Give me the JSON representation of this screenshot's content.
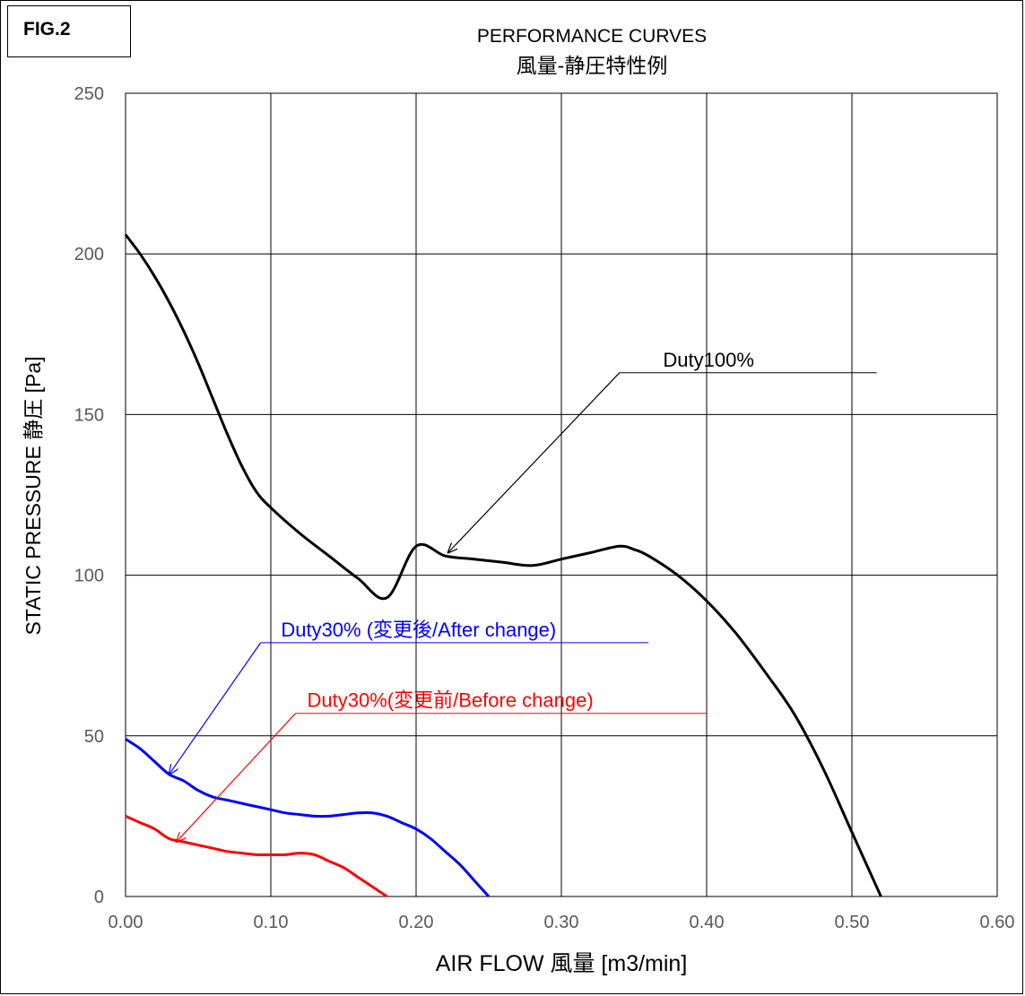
{
  "figure_label": "FIG.2",
  "chart_data": {
    "type": "line",
    "title": "PERFORMANCE CURVES",
    "subtitle": "風量-静圧特性例",
    "xlabel": "AIR FLOW 風量 [m3/min]",
    "ylabel": "STATIC PRESSURE 静圧 [Pa]",
    "xlim": [
      0,
      0.6
    ],
    "ylim": [
      0,
      250
    ],
    "xticks": [
      "0.00",
      "0.10",
      "0.20",
      "0.30",
      "0.40",
      "0.50",
      "0.60"
    ],
    "yticks": [
      "0",
      "50",
      "100",
      "150",
      "200",
      "250"
    ],
    "grid": true,
    "colors": {
      "duty100": "#000000",
      "after": "#0000ff",
      "before": "#ff0000"
    },
    "series": [
      {
        "key": "duty100",
        "name": "Duty100%",
        "x": [
          0.0,
          0.01,
          0.02,
          0.03,
          0.04,
          0.05,
          0.06,
          0.07,
          0.08,
          0.09,
          0.1,
          0.12,
          0.14,
          0.16,
          0.18,
          0.2,
          0.22,
          0.24,
          0.26,
          0.28,
          0.3,
          0.32,
          0.34,
          0.35,
          0.36,
          0.38,
          0.4,
          0.42,
          0.44,
          0.46,
          0.48,
          0.5,
          0.52
        ],
        "y": [
          206,
          200,
          193,
          185,
          176,
          166,
          155,
          144,
          134,
          126,
          121,
          113,
          106,
          99,
          93,
          109,
          106,
          105,
          104,
          103,
          105,
          107,
          109,
          108,
          106,
          100,
          92,
          82,
          70,
          57,
          40,
          20,
          0
        ]
      },
      {
        "key": "after",
        "name": "Duty30% (変更後/After change)",
        "x": [
          0.0,
          0.01,
          0.02,
          0.03,
          0.04,
          0.05,
          0.06,
          0.07,
          0.08,
          0.09,
          0.1,
          0.11,
          0.12,
          0.13,
          0.14,
          0.15,
          0.16,
          0.17,
          0.18,
          0.19,
          0.2,
          0.21,
          0.22,
          0.23,
          0.24,
          0.25
        ],
        "y": [
          49,
          46,
          42,
          38,
          36,
          33,
          31,
          30,
          29,
          28,
          27,
          26,
          25.5,
          25,
          25,
          25.5,
          26,
          26,
          25,
          23,
          21,
          18,
          14,
          10,
          5,
          0
        ]
      },
      {
        "key": "before",
        "name": "Duty30%(変更前/Before change)",
        "x": [
          0.0,
          0.01,
          0.02,
          0.03,
          0.04,
          0.05,
          0.06,
          0.07,
          0.08,
          0.09,
          0.1,
          0.11,
          0.12,
          0.13,
          0.14,
          0.15,
          0.16,
          0.17,
          0.18
        ],
        "y": [
          25,
          23,
          21,
          18,
          17,
          16,
          15,
          14,
          13.5,
          13,
          13,
          13,
          13.5,
          13,
          11,
          9,
          6,
          3,
          0
        ]
      }
    ],
    "annotations": [
      {
        "series": "duty100",
        "text": "Duty100%",
        "text_at": [
          0.37,
          163
        ],
        "line_to": [
          0.517,
          163
        ],
        "arrow_from": [
          0.34,
          163
        ],
        "arrow_to": [
          0.222,
          107
        ]
      },
      {
        "series": "after",
        "text": "Duty30% (変更後/After change)",
        "text_at": [
          0.107,
          79
        ],
        "line_to": [
          0.36,
          79
        ],
        "arrow_from": [
          0.093,
          79
        ],
        "arrow_to": [
          0.03,
          38
        ]
      },
      {
        "series": "before",
        "text": "Duty30%(変更前/Before change)",
        "text_at": [
          0.125,
          57
        ],
        "line_to": [
          0.4,
          57
        ],
        "arrow_from": [
          0.117,
          57
        ],
        "arrow_to": [
          0.035,
          17
        ]
      }
    ]
  }
}
